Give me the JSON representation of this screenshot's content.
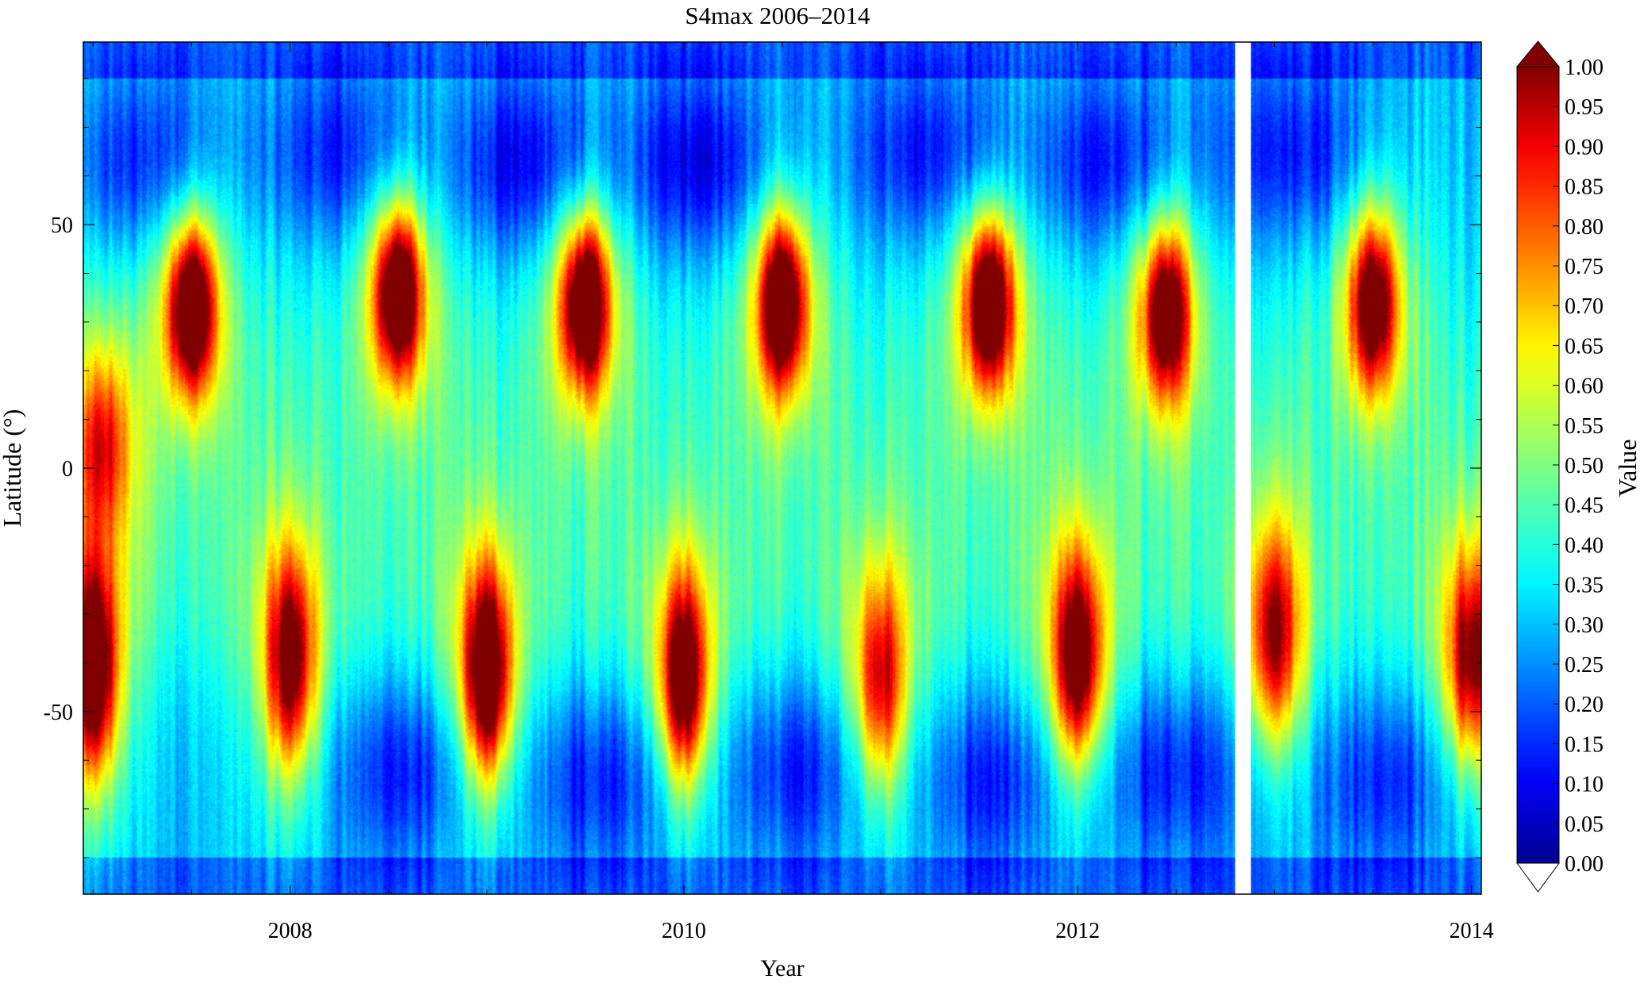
{
  "chart_data": {
    "type": "heatmap",
    "title": "S4max 2006–2014",
    "xlabel": "Year",
    "ylabel": "Latitude (°)",
    "colorbar_label": "Value",
    "xlim": [
      2006.95,
      2014.05
    ],
    "ylim": [
      -87.5,
      87.5
    ],
    "x_ticks": [
      2008,
      2010,
      2012,
      2014
    ],
    "x_tick_labels": [
      "2008",
      "2010",
      "2012",
      "2014"
    ],
    "y_ticks": [
      50,
      0,
      -50
    ],
    "y_tick_labels": [
      "50",
      "0",
      "-50"
    ],
    "clim": [
      0.0,
      1.0
    ],
    "colorbar_ticks": [
      "1.00",
      "0.95",
      "0.90",
      "0.85",
      "0.80",
      "0.75",
      "0.70",
      "0.65",
      "0.60",
      "0.55",
      "0.50",
      "0.45",
      "0.40",
      "0.35",
      "0.30",
      "0.25",
      "0.20",
      "0.15",
      "0.10",
      "0.05",
      "0.00"
    ],
    "colormap": "jet",
    "colormap_colors": [
      "#00008F",
      "#0000FF",
      "#00FFFF",
      "#FFFF00",
      "#FF0000",
      "#800000"
    ],
    "extend_max_color": "#800000",
    "extend_min_color": "#ffffff",
    "data_gap": [
      2012.8,
      2012.88
    ],
    "background_value": 0.3,
    "peaks": [
      {
        "year": 2007.05,
        "lat": 5,
        "value": 0.55
      },
      {
        "year": 2007.0,
        "lat": -42,
        "value": 0.92
      },
      {
        "year": 2007.5,
        "lat": 33,
        "value": 0.98
      },
      {
        "year": 2008.0,
        "lat": -40,
        "value": 0.82
      },
      {
        "year": 2008.55,
        "lat": 36,
        "value": 0.97
      },
      {
        "year": 2009.0,
        "lat": -43,
        "value": 0.98
      },
      {
        "year": 2009.5,
        "lat": 34,
        "value": 0.98
      },
      {
        "year": 2010.0,
        "lat": -44,
        "value": 0.93
      },
      {
        "year": 2010.5,
        "lat": 34,
        "value": 0.98
      },
      {
        "year": 2011.0,
        "lat": -45,
        "value": 0.72
      },
      {
        "year": 2011.55,
        "lat": 34,
        "value": 0.97
      },
      {
        "year": 2012.0,
        "lat": -40,
        "value": 0.88
      },
      {
        "year": 2012.45,
        "lat": 32,
        "value": 0.88
      },
      {
        "year": 2013.0,
        "lat": -35,
        "value": 0.72
      },
      {
        "year": 2013.5,
        "lat": 34,
        "value": 0.88
      },
      {
        "year": 2014.0,
        "lat": -40,
        "value": 0.78
      }
    ],
    "low_regions": [
      {
        "year": 2007.25,
        "lat": 62,
        "value": 0.12
      },
      {
        "year": 2008.25,
        "lat": 64,
        "value": 0.12
      },
      {
        "year": 2009.2,
        "lat": 62,
        "value": 0.08
      },
      {
        "year": 2010.1,
        "lat": 62,
        "value": 0.08
      },
      {
        "year": 2011.25,
        "lat": 64,
        "value": 0.1
      },
      {
        "year": 2012.15,
        "lat": 62,
        "value": 0.1
      },
      {
        "year": 2013.1,
        "lat": 64,
        "value": 0.12
      },
      {
        "year": 2008.6,
        "lat": -62,
        "value": 0.12
      },
      {
        "year": 2009.6,
        "lat": -64,
        "value": 0.12
      },
      {
        "year": 2010.6,
        "lat": -62,
        "value": 0.12
      },
      {
        "year": 2011.6,
        "lat": -64,
        "value": 0.12
      },
      {
        "year": 2012.5,
        "lat": -62,
        "value": 0.12
      },
      {
        "year": 2013.6,
        "lat": -64,
        "value": 0.14
      }
    ]
  }
}
